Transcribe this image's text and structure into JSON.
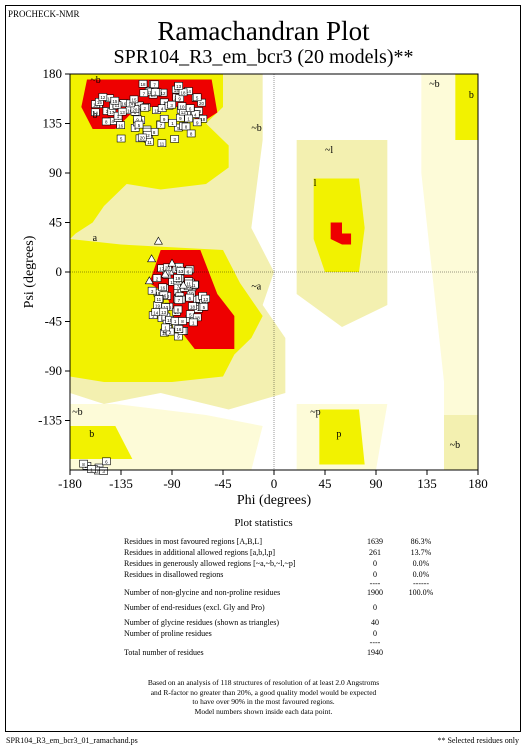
{
  "header": {
    "program": "PROCHECK-NMR"
  },
  "title": "Ramachandran Plot",
  "subtitle": "SPR104_R3_em_bcr3 (20 models)**",
  "chart_data": {
    "type": "scatter",
    "title": "Ramachandran Plot",
    "subtitle": "SPR104_R3_em_bcr3 (20 models)**",
    "xlabel": "Phi (degrees)",
    "ylabel": "Psi (degrees)",
    "xlim": [
      -180,
      180
    ],
    "ylim": [
      -180,
      180
    ],
    "xticks": [
      -180,
      -135,
      -90,
      -45,
      0,
      45,
      90,
      135,
      180
    ],
    "yticks": [
      180,
      135,
      90,
      45,
      0,
      -45,
      -90,
      -135
    ],
    "xtick_labels": [
      "-180",
      "-135",
      "-90",
      "-45",
      "0",
      "45",
      "90",
      "135",
      "180"
    ],
    "ytick_labels": [
      "180",
      "135",
      "90",
      "45",
      "0",
      "-45",
      "-90",
      "-135"
    ],
    "region_labels": [
      {
        "text": "a",
        "phi": -160,
        "psi": 28
      },
      {
        "text": "~b",
        "phi": -162,
        "psi": 172
      },
      {
        "text": "b",
        "phi": -160,
        "psi": 140
      },
      {
        "text": "~b",
        "phi": -20,
        "psi": 128
      },
      {
        "text": "~l",
        "phi": 45,
        "psi": 108
      },
      {
        "text": "l",
        "phi": 35,
        "psi": 78
      },
      {
        "text": "~a",
        "phi": -20,
        "psi": -16
      },
      {
        "text": "~b",
        "phi": 137,
        "psi": 168
      },
      {
        "text": "b",
        "phi": 172,
        "psi": 158
      },
      {
        "text": "~b",
        "phi": -178,
        "psi": -130
      },
      {
        "text": "b",
        "phi": -163,
        "psi": -150
      },
      {
        "text": "~p",
        "phi": 32,
        "psi": -130
      },
      {
        "text": "p",
        "phi": 55,
        "psi": -150
      },
      {
        "text": "~b",
        "phi": 155,
        "psi": -160
      }
    ],
    "grid": false,
    "legend": "none"
  },
  "stats": {
    "title": "Plot statistics",
    "rows": [
      {
        "label": "Residues in most favoured regions  [A,B,L]",
        "count": "1639",
        "pct": "86.3%"
      },
      {
        "label": "Residues in additional allowed regions  [a,b,l,p]",
        "count": "261",
        "pct": "13.7%"
      },
      {
        "label": "Residues in generously allowed regions  [~a,~b,~l,~p]",
        "count": "0",
        "pct": "0.0%"
      },
      {
        "label": "Residues in disallowed regions",
        "count": "0",
        "pct": "0.0%"
      },
      {
        "label": "",
        "count": "----",
        "pct": "------"
      },
      {
        "label": "Number of non-glycine and non-proline residues",
        "count": "1900",
        "pct": "100.0%"
      },
      {
        "label": "Number of end-residues (excl. Gly and Pro)",
        "count": "0",
        "pct": ""
      },
      {
        "label": "Number of glycine residues (shown as triangles)",
        "count": "40",
        "pct": ""
      },
      {
        "label": "Number of proline residues",
        "count": "0",
        "pct": ""
      },
      {
        "label": "",
        "count": "----",
        "pct": ""
      },
      {
        "label": "Total number of residues",
        "count": "1940",
        "pct": ""
      }
    ]
  },
  "footnote": [
    "Based on an analysis of 118 structures of resolution of at least 2.0 Angstroms",
    "and R-factor no greater than 20%, a good quality model would be expected",
    "to have over 90% in the most favoured regions.",
    "Model numbers shown inside each data point."
  ],
  "footer": {
    "filename": "SPR104_R3_em_bcr3_01_ramachand.ps",
    "note": "** Selected residues only"
  },
  "colors": {
    "core": "#ee0000",
    "allowed": "#f2f200",
    "generous": "#f3f0b0",
    "pale": "#fdfbd8",
    "disallowed": "#ffffff"
  }
}
